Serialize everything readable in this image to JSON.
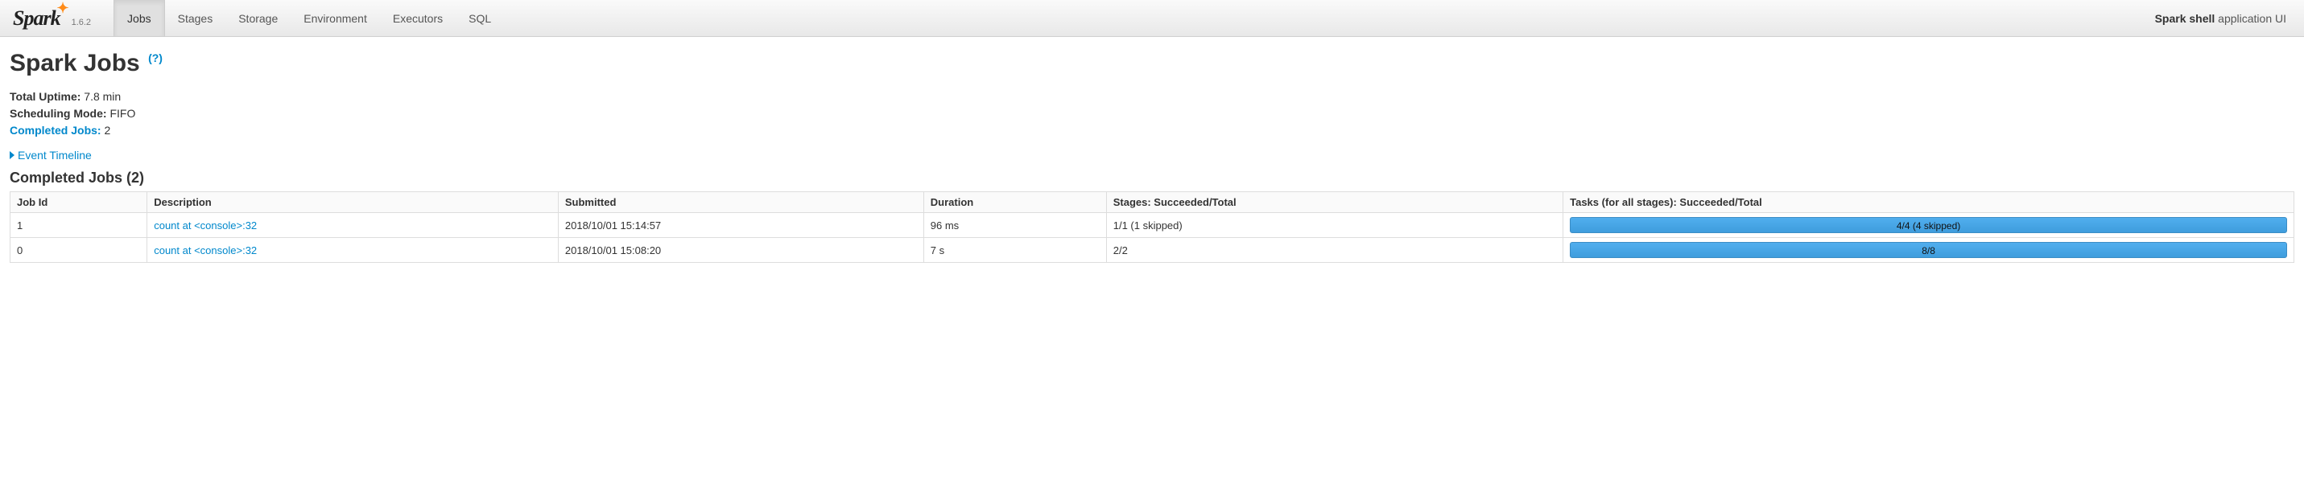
{
  "nav": {
    "logo_text": "Spark",
    "version": "1.6.2",
    "tabs": [
      "Jobs",
      "Stages",
      "Storage",
      "Environment",
      "Executors",
      "SQL"
    ],
    "active_tab_index": 0,
    "right_bold": "Spark shell",
    "right_rest": " application UI"
  },
  "page": {
    "title": "Spark Jobs",
    "help": "(?)",
    "summary": {
      "uptime_label": "Total Uptime:",
      "uptime_value": " 7.8 min",
      "sched_label": "Scheduling Mode:",
      "sched_value": " FIFO",
      "completed_label": "Completed Jobs:",
      "completed_value": " 2"
    },
    "event_timeline": "Event Timeline",
    "section_title": "Completed Jobs (2)"
  },
  "table": {
    "headers": [
      "Job Id",
      "Description",
      "Submitted",
      "Duration",
      "Stages: Succeeded/Total",
      "Tasks (for all stages): Succeeded/Total"
    ],
    "rows": [
      {
        "id": "1",
        "desc": "count at <console>:32",
        "submitted": "2018/10/01 15:14:57",
        "duration": "96 ms",
        "stages": "1/1 (1 skipped)",
        "tasks": "4/4 (4 skipped)"
      },
      {
        "id": "0",
        "desc": "count at <console>:32",
        "submitted": "2018/10/01 15:08:20",
        "duration": "7 s",
        "stages": "2/2",
        "tasks": "8/8"
      }
    ]
  },
  "colors": {
    "link": "#0088cc",
    "progress_bg": "#48a6e6",
    "border": "#dddddd",
    "navbar_top": "#fafafa",
    "navbar_bottom": "#e8e8e8"
  }
}
